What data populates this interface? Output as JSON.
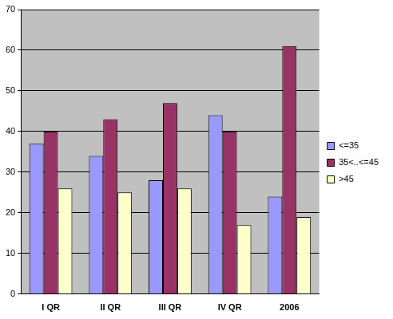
{
  "chart_data": {
    "type": "bar",
    "categories": [
      "I QR",
      "II QR",
      "III QR",
      "IV QR",
      "2006"
    ],
    "series": [
      {
        "name": "<=35",
        "color": "#9999ff",
        "values": [
          37,
          34,
          28,
          44,
          24
        ]
      },
      {
        "name": "35<..<=45",
        "color": "#993366",
        "values": [
          40,
          43,
          47,
          40,
          61
        ]
      },
      {
        "name": ">45",
        "color": "#ffffcc",
        "values": [
          26,
          25,
          26,
          17,
          19
        ]
      }
    ],
    "ylim": [
      0,
      70
    ],
    "yticks": [
      0,
      10,
      20,
      30,
      40,
      50,
      60,
      70
    ],
    "grid": true,
    "legend": "right"
  }
}
